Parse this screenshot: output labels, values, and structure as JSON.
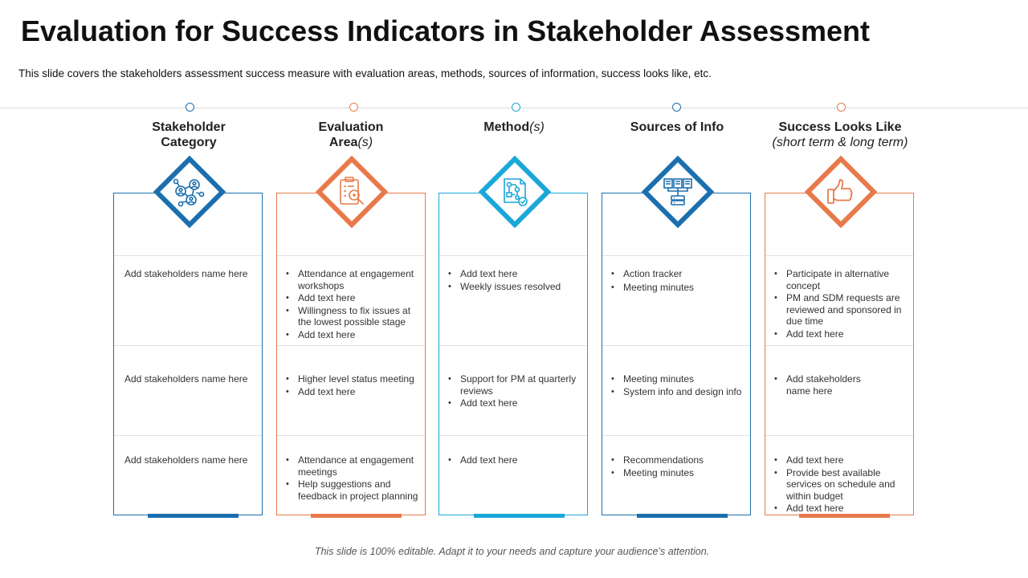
{
  "title": "Evaluation for Success Indicators in Stakeholder Assessment",
  "subtitle": "This slide covers the stakeholders assessment success measure with evaluation areas, methods, sources of information, success looks like, etc.",
  "footer": "This slide is 100% editable. Adapt it to your needs and capture your audience’s attention.",
  "colors": {
    "blue": "#1b6fae",
    "orange": "#e8794a",
    "light_blue": "#1aa7d9"
  },
  "columns": [
    {
      "header_line1": "Stakeholder",
      "header_line2": "Category",
      "icon": "network-people-icon",
      "rows": [
        [
          "Add stakeholders name here"
        ],
        [
          "Add stakeholders name here"
        ],
        [
          "Add stakeholders name here"
        ]
      ]
    },
    {
      "header_line1": "Evaluation",
      "header_line2_main": "Area",
      "header_line2_ital": "(s)",
      "icon": "clipboard-magnifier-icon",
      "rows": [
        [
          "Attendance at engagement workshops",
          "Add text here",
          "Willingness to fix issues at the lowest possible stage",
          "Add text here"
        ],
        [
          "Higher level status meeting",
          "Add text here"
        ],
        [
          "Attendance at engagement meetings",
          "Help suggestions and feedback in project planning"
        ]
      ]
    },
    {
      "header_main": "Method",
      "header_ital": "(s)",
      "icon": "flowchart-document-icon",
      "rows": [
        [
          "Add text here",
          "Weekly issues resolved"
        ],
        [
          "Support for PM at quarterly reviews",
          "Add text here"
        ],
        [
          "Add text here"
        ]
      ]
    },
    {
      "header_line1": "Sources of Info",
      "icon": "server-database-icon",
      "rows": [
        [
          "Action tracker",
          "Meeting minutes"
        ],
        [
          "Meeting minutes",
          "System info and design info"
        ],
        [
          "Recommendations",
          "Meeting minutes"
        ]
      ]
    },
    {
      "header_line1": "Success Looks Like",
      "header_line2": "(short term & long term)",
      "icon": "thumbs-up-icon",
      "rows": [
        [
          "Participate in alternative concept",
          "PM and SDM requests are reviewed and sponsored in due time",
          "Add text here"
        ],
        [
          "Add stakeholders name here"
        ],
        [
          "Add text here",
          "Provide best available services on schedule and within budget",
          "Add text here"
        ]
      ]
    }
  ]
}
